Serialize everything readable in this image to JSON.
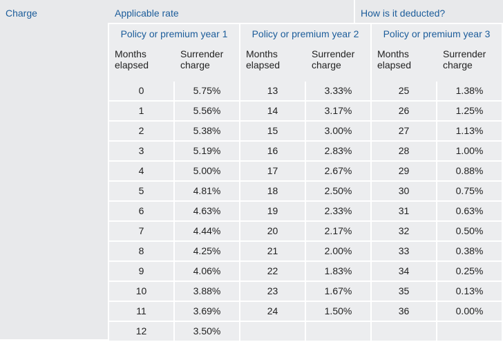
{
  "header": {
    "charge_label": "Charge",
    "rate_label": "Applicable rate",
    "how_label": "How is it deducted?"
  },
  "columns": [
    {
      "title": "Policy or premium year 1",
      "months_label": "Months elapsed",
      "charge_label": "Surrender charge",
      "rows": [
        {
          "m": "0",
          "c": "5.75%"
        },
        {
          "m": "1",
          "c": "5.56%"
        },
        {
          "m": "2",
          "c": "5.38%"
        },
        {
          "m": "3",
          "c": "5.19%"
        },
        {
          "m": "4",
          "c": "5.00%"
        },
        {
          "m": "5",
          "c": "4.81%"
        },
        {
          "m": "6",
          "c": "4.63%"
        },
        {
          "m": "7",
          "c": "4.44%"
        },
        {
          "m": "8",
          "c": "4.25%"
        },
        {
          "m": "9",
          "c": "4.06%"
        },
        {
          "m": "10",
          "c": "3.88%"
        },
        {
          "m": "11",
          "c": "3.69%"
        },
        {
          "m": "12",
          "c": "3.50%"
        }
      ]
    },
    {
      "title": "Policy or premium year 2",
      "months_label": "Months elapsed",
      "charge_label": "Surrender charge",
      "rows": [
        {
          "m": "13",
          "c": "3.33%"
        },
        {
          "m": "14",
          "c": "3.17%"
        },
        {
          "m": "15",
          "c": "3.00%"
        },
        {
          "m": "16",
          "c": "2.83%"
        },
        {
          "m": "17",
          "c": "2.67%"
        },
        {
          "m": "18",
          "c": "2.50%"
        },
        {
          "m": "19",
          "c": "2.33%"
        },
        {
          "m": "20",
          "c": "2.17%"
        },
        {
          "m": "21",
          "c": "2.00%"
        },
        {
          "m": "22",
          "c": "1.83%"
        },
        {
          "m": "23",
          "c": "1.67%"
        },
        {
          "m": "24",
          "c": "1.50%"
        },
        {
          "m": "",
          "c": ""
        }
      ]
    },
    {
      "title": "Policy or premium year 3",
      "months_label": "Months elapsed",
      "charge_label": "Surrender charge",
      "rows": [
        {
          "m": "25",
          "c": "1.38%"
        },
        {
          "m": "26",
          "c": "1.25%"
        },
        {
          "m": "27",
          "c": "1.13%"
        },
        {
          "m": "28",
          "c": "1.00%"
        },
        {
          "m": "29",
          "c": "0.88%"
        },
        {
          "m": "30",
          "c": "0.75%"
        },
        {
          "m": "31",
          "c": "0.63%"
        },
        {
          "m": "32",
          "c": "0.50%"
        },
        {
          "m": "33",
          "c": "0.38%"
        },
        {
          "m": "34",
          "c": "0.25%"
        },
        {
          "m": "35",
          "c": "0.13%"
        },
        {
          "m": "36",
          "c": "0.00%"
        },
        {
          "m": "",
          "c": ""
        }
      ]
    }
  ]
}
